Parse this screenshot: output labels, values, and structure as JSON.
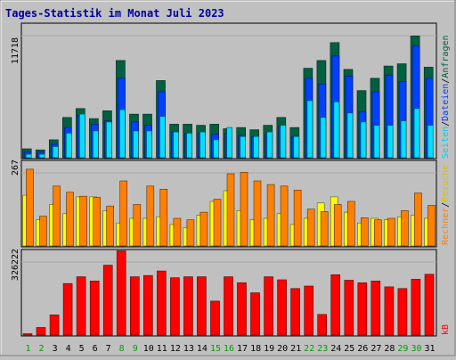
{
  "title": "Tages-Statistik im Monat Juli 2023",
  "labels": {
    "anfragen": "Anfragen",
    "dateien": "Dateien",
    "seiten": "Seiten",
    "besuche": "Besuche",
    "rechner": "Rechner",
    "kb": "kB",
    "sep1": "/",
    "sep2": "/",
    "sep3": "/"
  },
  "colors": {
    "background": "#c0c0c0",
    "title": "#0000a0",
    "anfragen": "#006040",
    "dateien": "#0040ff",
    "seiten": "#00e0ff",
    "besuche": "#ffff00",
    "rechner": "#ff8000",
    "kb": "#ff0000",
    "weekend_label": "#00a000",
    "weekday_label": "#000000"
  },
  "chart_data": [
    {
      "type": "bar",
      "name": "hits-files-pages",
      "ymax_label": "11718",
      "ylim": [
        0,
        11718
      ],
      "x": [
        "1",
        "2",
        "3",
        "4",
        "5",
        "6",
        "7",
        "8",
        "9",
        "10",
        "11",
        "12",
        "13",
        "14",
        "15",
        "16",
        "17",
        "18",
        "19",
        "20",
        "21",
        "22",
        "23",
        "24",
        "25",
        "26",
        "27",
        "28",
        "29",
        "30",
        "31"
      ],
      "weekend": [
        1,
        2,
        8,
        9,
        15,
        16,
        22,
        23,
        29,
        30
      ],
      "series": [
        {
          "key": "anfragen",
          "values": [
            800,
            700,
            1600,
            3600,
            4400,
            3500,
            4200,
            8700,
            3900,
            3900,
            6900,
            3000,
            3000,
            2900,
            3000,
            2600,
            2700,
            2500,
            2900,
            3600,
            2700,
            8000,
            8700,
            10300,
            7900,
            6000,
            7100,
            8200,
            8400,
            10900,
            8100
          ]
        },
        {
          "key": "dateien",
          "values": [
            500,
            500,
            1200,
            2700,
            3800,
            3000,
            3300,
            7100,
            3200,
            2900,
            5900,
            2300,
            2200,
            2200,
            2100,
            2200,
            2000,
            1900,
            2100,
            2800,
            1900,
            7100,
            6600,
            9100,
            7300,
            4100,
            5900,
            7400,
            6800,
            10000,
            7100
          ]
        },
        {
          "key": "seiten",
          "values": [
            300,
            300,
            1000,
            2200,
            3900,
            2400,
            3200,
            4300,
            2400,
            2400,
            3700,
            2300,
            2200,
            2300,
            1600,
            2700,
            1900,
            1900,
            2300,
            2900,
            1900,
            5100,
            3600,
            5000,
            4000,
            3200,
            2900,
            2900,
            3300,
            4400,
            2900
          ]
        }
      ]
    },
    {
      "type": "bar",
      "name": "visits-sites",
      "ymax_label": "267",
      "ylim": [
        0,
        267
      ],
      "x": [
        "1",
        "2",
        "3",
        "4",
        "5",
        "6",
        "7",
        "8",
        "9",
        "10",
        "11",
        "12",
        "13",
        "14",
        "15",
        "16",
        "17",
        "18",
        "19",
        "20",
        "21",
        "22",
        "23",
        "24",
        "25",
        "26",
        "27",
        "28",
        "29",
        "30",
        "31"
      ],
      "series": [
        {
          "key": "besuche",
          "values": [
            165,
            85,
            135,
            105,
            160,
            160,
            115,
            75,
            90,
            90,
            95,
            70,
            60,
            100,
            145,
            180,
            115,
            85,
            90,
            105,
            70,
            90,
            140,
            160,
            110,
            75,
            90,
            85,
            95,
            100,
            90
          ]
        },
        {
          "key": "rechner",
          "values": [
            250,
            97,
            195,
            175,
            162,
            158,
            130,
            212,
            135,
            195,
            185,
            90,
            85,
            110,
            152,
            235,
            240,
            212,
            200,
            195,
            182,
            120,
            112,
            135,
            145,
            92,
            85,
            90,
            115,
            172,
            132
          ]
        }
      ]
    },
    {
      "type": "bar",
      "name": "kb",
      "ymax_label": "326222",
      "ylim": [
        0,
        326222
      ],
      "x": [
        "1",
        "2",
        "3",
        "4",
        "5",
        "6",
        "7",
        "8",
        "9",
        "10",
        "11",
        "12",
        "13",
        "14",
        "15",
        "16",
        "17",
        "18",
        "19",
        "20",
        "21",
        "22",
        "23",
        "24",
        "25",
        "26",
        "27",
        "28",
        "29",
        "30",
        "31"
      ],
      "series": [
        {
          "key": "kb",
          "values": [
            0,
            30000,
            80000,
            205000,
            232000,
            215000,
            278000,
            335000,
            232000,
            237000,
            255000,
            228000,
            232000,
            232000,
            135000,
            232000,
            208000,
            168000,
            232000,
            220000,
            185000,
            195000,
            82000,
            240000,
            218000,
            208000,
            215000,
            192000,
            185000,
            222000,
            242000
          ]
        }
      ]
    }
  ]
}
